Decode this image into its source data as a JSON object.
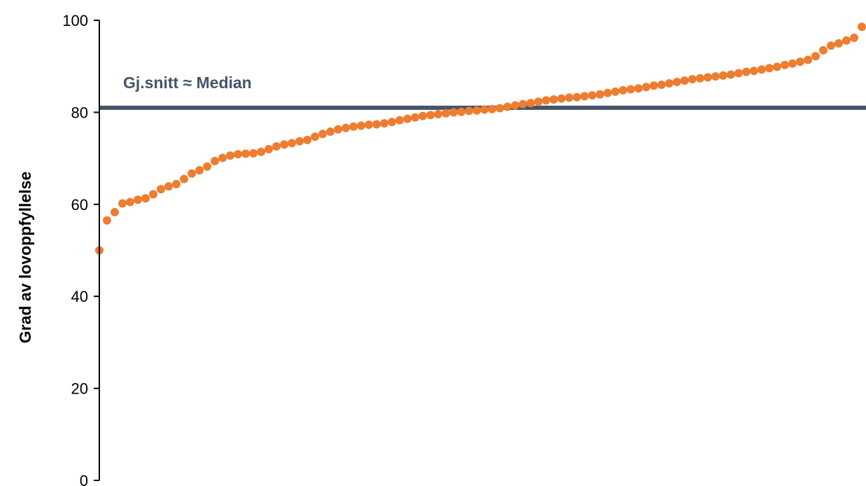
{
  "colors": {
    "points": "#ED7D31",
    "reference_line": "#44546A",
    "axis": "#000000"
  },
  "chart_data": {
    "type": "scatter",
    "title": "",
    "xlabel": "",
    "ylabel": "Grad av lovoppfyllelse",
    "ylim": [
      0,
      100
    ],
    "yticks": [
      0,
      20,
      40,
      60,
      80,
      100
    ],
    "x_axis_visible": false,
    "grid": false,
    "legend": "none",
    "reference_line": {
      "label": "Gj.snitt ≈ Median",
      "value": 81
    },
    "series": [
      {
        "values": [
          50.0,
          56.5,
          58.3,
          60.2,
          60.5,
          61.0,
          61.3,
          62.2,
          63.3,
          63.9,
          64.4,
          65.5,
          66.7,
          67.4,
          68.2,
          69.4,
          70.1,
          70.6,
          70.9,
          71.0,
          71.1,
          71.4,
          72.0,
          72.6,
          73.0,
          73.3,
          73.7,
          74.0,
          74.7,
          75.3,
          75.8,
          76.3,
          76.6,
          76.9,
          77.1,
          77.3,
          77.4,
          77.6,
          77.9,
          78.3,
          78.6,
          78.9,
          79.2,
          79.4,
          79.6,
          79.8,
          80.0,
          80.1,
          80.3,
          80.4,
          80.6,
          80.7,
          80.9,
          81.2,
          81.5,
          81.8,
          82.0,
          82.3,
          82.6,
          82.8,
          83.0,
          83.2,
          83.3,
          83.5,
          83.7,
          83.9,
          84.2,
          84.5,
          84.8,
          85.0,
          85.2,
          85.5,
          85.8,
          86.0,
          86.3,
          86.6,
          86.9,
          87.2,
          87.4,
          87.6,
          87.8,
          88.0,
          88.2,
          88.5,
          88.8,
          89.0,
          89.3,
          89.6,
          89.9,
          90.3,
          90.6,
          91.0,
          91.4,
          92.2,
          93.5,
          94.5,
          95.0,
          95.6,
          96.2,
          98.6
        ]
      }
    ]
  }
}
